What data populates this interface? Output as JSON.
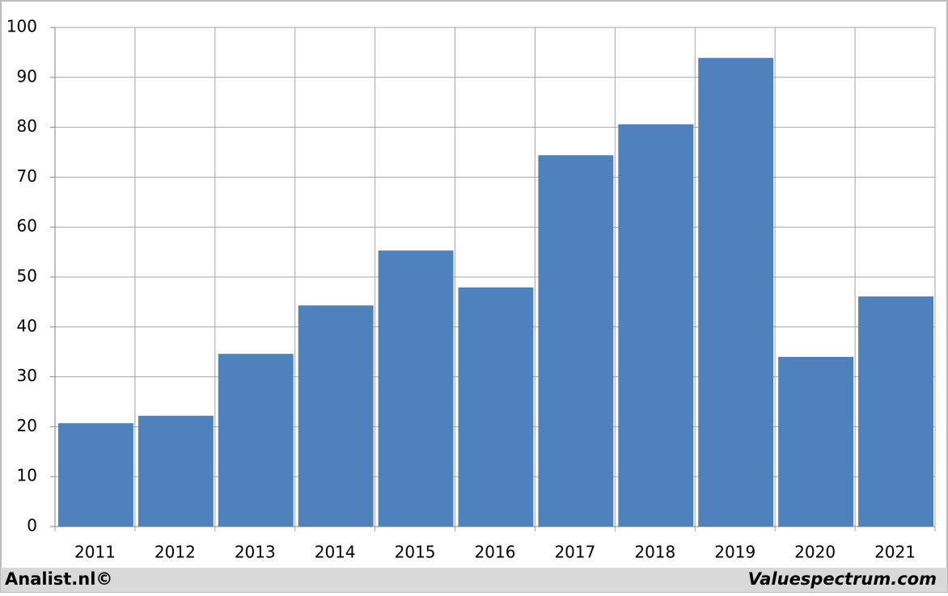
{
  "chart_data": {
    "type": "bar",
    "categories": [
      "2011",
      "2012",
      "2013",
      "2014",
      "2015",
      "2016",
      "2017",
      "2018",
      "2019",
      "2020",
      "2021"
    ],
    "values": [
      20.7,
      22.2,
      34.6,
      44.3,
      55.3,
      47.9,
      74.4,
      80.6,
      93.9,
      34.0,
      46.1
    ],
    "color": "#4f81bd",
    "ylim": [
      0,
      100
    ],
    "yticks": [
      0,
      10,
      20,
      30,
      40,
      50,
      60,
      70,
      80,
      90,
      100
    ],
    "grid": true,
    "footer_left": "Analist.nl©",
    "footer_right": "Valuespectrum.com"
  }
}
